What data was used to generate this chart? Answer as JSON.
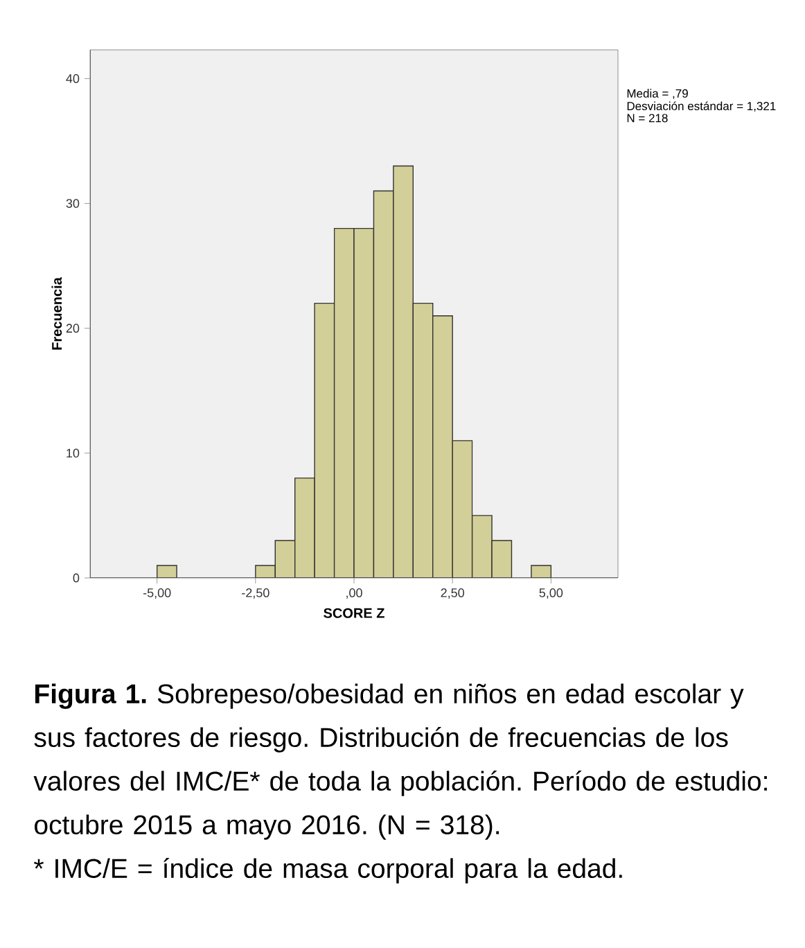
{
  "chart_data": {
    "type": "histogram",
    "xlabel": "SCORE Z",
    "ylabel": "Frecuencia",
    "bins": [
      -5,
      -4.5,
      -4,
      -3.5,
      -3,
      -2.5,
      -2,
      -1.5,
      -1,
      -0.5,
      0,
      0.5,
      1,
      1.5,
      2,
      2.5,
      3,
      3.5,
      4,
      4.5,
      5
    ],
    "values": [
      1,
      0,
      0,
      0,
      0,
      1,
      3,
      8,
      22,
      28,
      28,
      31,
      33,
      22,
      21,
      11,
      5,
      3,
      0,
      1
    ],
    "color": "#d3cf98",
    "xlim": [
      -6.7,
      6.7
    ],
    "ylim": [
      0,
      42.3
    ],
    "xticks": [
      {
        "value": -5,
        "label": "-5,00"
      },
      {
        "value": -2.5,
        "label": "-2,50"
      },
      {
        "value": 0,
        "label": ",00"
      },
      {
        "value": 2.5,
        "label": "2,50"
      },
      {
        "value": 5,
        "label": "5,00"
      }
    ],
    "yticks": [
      0,
      10,
      20,
      30,
      40
    ],
    "annotations": [
      "Media = ,79",
      "Desviación estándar = 1,321",
      "N = 218",
      "**Figura 1.** Sobrepeso/obesidad en niños en edad escolar y sus factores de riesgo. Distribución de frecuencias de los valores del IMC/E* de toda la población. Período de estudio: octubre 2015 a mayo 2016. (N = 318).",
      "* IMC/E = índice de masa corporal para la edad."
    ]
  }
}
